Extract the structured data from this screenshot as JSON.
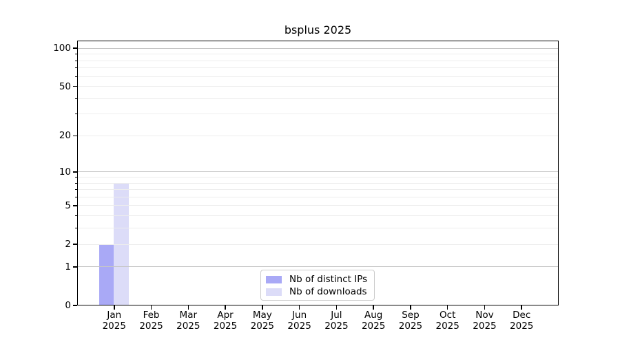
{
  "chart_data": {
    "type": "bar",
    "title": "bsplus 2025",
    "categories": [
      "Jan",
      "Feb",
      "Mar",
      "Apr",
      "May",
      "Jun",
      "Jul",
      "Aug",
      "Sep",
      "Oct",
      "Nov",
      "Dec"
    ],
    "x_sublabel": "2025",
    "series": [
      {
        "name": "Nb of distinct IPs",
        "color": "#a9a9f6",
        "values": [
          2,
          0,
          0,
          0,
          0,
          0,
          0,
          0,
          0,
          0,
          0,
          0
        ]
      },
      {
        "name": "Nb of downloads",
        "color": "#dcdcf8",
        "values": [
          8,
          0,
          0,
          0,
          0,
          0,
          0,
          0,
          0,
          0,
          0,
          0
        ]
      }
    ],
    "y_axis": {
      "scale": "log1p",
      "max": 115,
      "labeled_ticks": [
        0,
        1,
        2,
        5,
        10,
        20,
        50,
        100
      ],
      "decade_gridlines": [
        1,
        10,
        100
      ],
      "minor_gridlines": [
        2,
        3,
        4,
        5,
        6,
        7,
        8,
        9,
        20,
        30,
        40,
        50,
        60,
        70,
        80,
        90
      ],
      "unlabeled_minor_ticks": [
        3,
        4,
        6,
        7,
        8,
        9,
        30,
        40,
        60,
        70,
        80,
        90
      ]
    },
    "legend": {
      "position": "lower-center",
      "entries": [
        "Nb of distinct IPs",
        "Nb of downloads"
      ]
    },
    "colors": {
      "grid_major": "#c6c6c6",
      "grid_minor": "#ededed",
      "spine": "#000000",
      "background": "#ffffff"
    }
  }
}
